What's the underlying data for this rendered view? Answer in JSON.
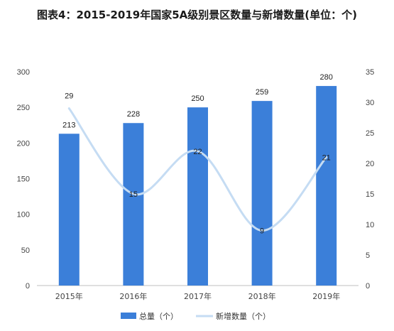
{
  "title": "图表4：2015-2019年国家5A级别景区数量与新增数量(单位：个)",
  "chart_data": {
    "type": "bar",
    "title": "图表4：2015-2019年国家5A级别景区数量与新增数量(单位：个)",
    "categories": [
      "2015年",
      "2016年",
      "2017年",
      "2018年",
      "2019年"
    ],
    "series": [
      {
        "name": "总量（个）",
        "type": "bar",
        "axis": "left",
        "values": [
          213,
          228,
          250,
          259,
          280
        ],
        "color": "#3b7fd9"
      },
      {
        "name": "新增数量（个）",
        "type": "line",
        "axis": "right",
        "values": [
          29,
          15,
          22,
          9,
          21
        ],
        "color": "#c5dcf3"
      }
    ],
    "y_left": {
      "min": 0,
      "max": 300,
      "ticks": [
        0,
        50,
        100,
        150,
        200,
        250,
        300
      ]
    },
    "y_right": {
      "min": 0,
      "max": 35,
      "ticks": [
        0,
        5,
        10,
        15,
        20,
        25,
        30,
        35
      ]
    },
    "grid": false,
    "legend": "bottom"
  }
}
